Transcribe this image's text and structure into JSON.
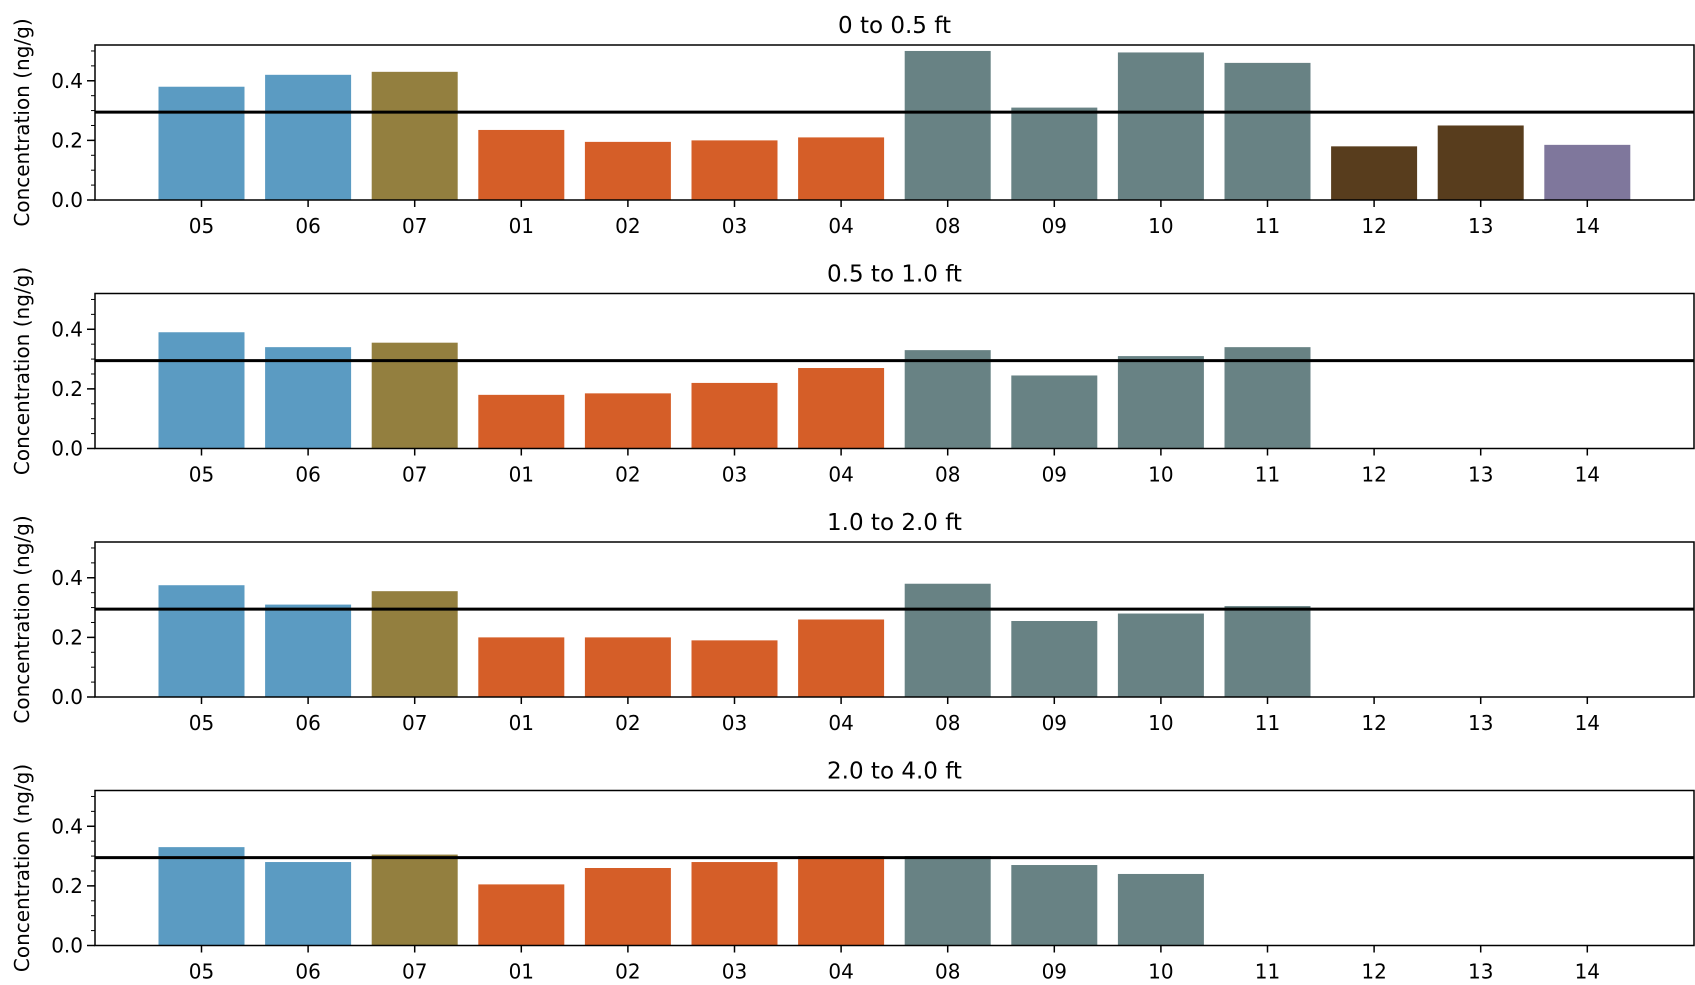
{
  "chart_data": [
    {
      "type": "bar",
      "title": "0 to 0.5 ft",
      "ylabel": "Concentration (ng/g)",
      "xlabel": "",
      "ylim": [
        0,
        0.52
      ],
      "yticks": [
        0.0,
        0.2,
        0.4
      ],
      "ytick_labels": [
        "0.0",
        "0.2",
        "0.4"
      ],
      "reference_line": 0.295,
      "categories": [
        "05",
        "06",
        "07",
        "01",
        "02",
        "03",
        "04",
        "08",
        "09",
        "10",
        "11",
        "12",
        "13",
        "14"
      ],
      "values": [
        0.38,
        0.42,
        0.43,
        0.235,
        0.195,
        0.2,
        0.21,
        0.5,
        0.31,
        0.495,
        0.46,
        0.18,
        0.25,
        0.185
      ],
      "colors": [
        "#5b9bc2",
        "#5b9bc2",
        "#937f3f",
        "#d55e28",
        "#d55e28",
        "#d55e28",
        "#d55e28",
        "#688284",
        "#688284",
        "#688284",
        "#688284",
        "#583d1d",
        "#583d1d",
        "#7f779c"
      ]
    },
    {
      "type": "bar",
      "title": "0.5 to 1.0 ft",
      "ylabel": "Concentration (ng/g)",
      "xlabel": "",
      "ylim": [
        0,
        0.52
      ],
      "yticks": [
        0.0,
        0.2,
        0.4
      ],
      "ytick_labels": [
        "0.0",
        "0.2",
        "0.4"
      ],
      "reference_line": 0.295,
      "categories": [
        "05",
        "06",
        "07",
        "01",
        "02",
        "03",
        "04",
        "08",
        "09",
        "10",
        "11",
        "12",
        "13",
        "14"
      ],
      "values": [
        0.39,
        0.34,
        0.355,
        0.18,
        0.185,
        0.22,
        0.27,
        0.33,
        0.245,
        0.31,
        0.34,
        null,
        null,
        null
      ],
      "colors": [
        "#5b9bc2",
        "#5b9bc2",
        "#937f3f",
        "#d55e28",
        "#d55e28",
        "#d55e28",
        "#d55e28",
        "#688284",
        "#688284",
        "#688284",
        "#688284",
        "#583d1d",
        "#583d1d",
        "#7f779c"
      ]
    },
    {
      "type": "bar",
      "title": "1.0 to 2.0 ft",
      "ylabel": "Concentration (ng/g)",
      "xlabel": "",
      "ylim": [
        0,
        0.52
      ],
      "yticks": [
        0.0,
        0.2,
        0.4
      ],
      "ytick_labels": [
        "0.0",
        "0.2",
        "0.4"
      ],
      "reference_line": 0.295,
      "categories": [
        "05",
        "06",
        "07",
        "01",
        "02",
        "03",
        "04",
        "08",
        "09",
        "10",
        "11",
        "12",
        "13",
        "14"
      ],
      "values": [
        0.375,
        0.31,
        0.355,
        0.2,
        0.2,
        0.19,
        0.26,
        0.38,
        0.255,
        0.28,
        0.305,
        null,
        null,
        null
      ],
      "colors": [
        "#5b9bc2",
        "#5b9bc2",
        "#937f3f",
        "#d55e28",
        "#d55e28",
        "#d55e28",
        "#d55e28",
        "#688284",
        "#688284",
        "#688284",
        "#688284",
        "#583d1d",
        "#583d1d",
        "#7f779c"
      ]
    },
    {
      "type": "bar",
      "title": "2.0 to 4.0 ft",
      "ylabel": "Concentration (ng/g)",
      "xlabel": "",
      "ylim": [
        0,
        0.52
      ],
      "yticks": [
        0.0,
        0.2,
        0.4
      ],
      "ytick_labels": [
        "0.0",
        "0.2",
        "0.4"
      ],
      "reference_line": 0.295,
      "categories": [
        "05",
        "06",
        "07",
        "01",
        "02",
        "03",
        "04",
        "08",
        "09",
        "10",
        "11",
        "12",
        "13",
        "14"
      ],
      "values": [
        0.33,
        0.28,
        0.305,
        0.205,
        0.26,
        0.28,
        0.3,
        0.3,
        0.27,
        0.24,
        null,
        null,
        null,
        null
      ],
      "colors": [
        "#5b9bc2",
        "#5b9bc2",
        "#937f3f",
        "#d55e28",
        "#d55e28",
        "#d55e28",
        "#d55e28",
        "#688284",
        "#688284",
        "#688284",
        "#688284",
        "#583d1d",
        "#583d1d",
        "#7f779c"
      ]
    }
  ]
}
